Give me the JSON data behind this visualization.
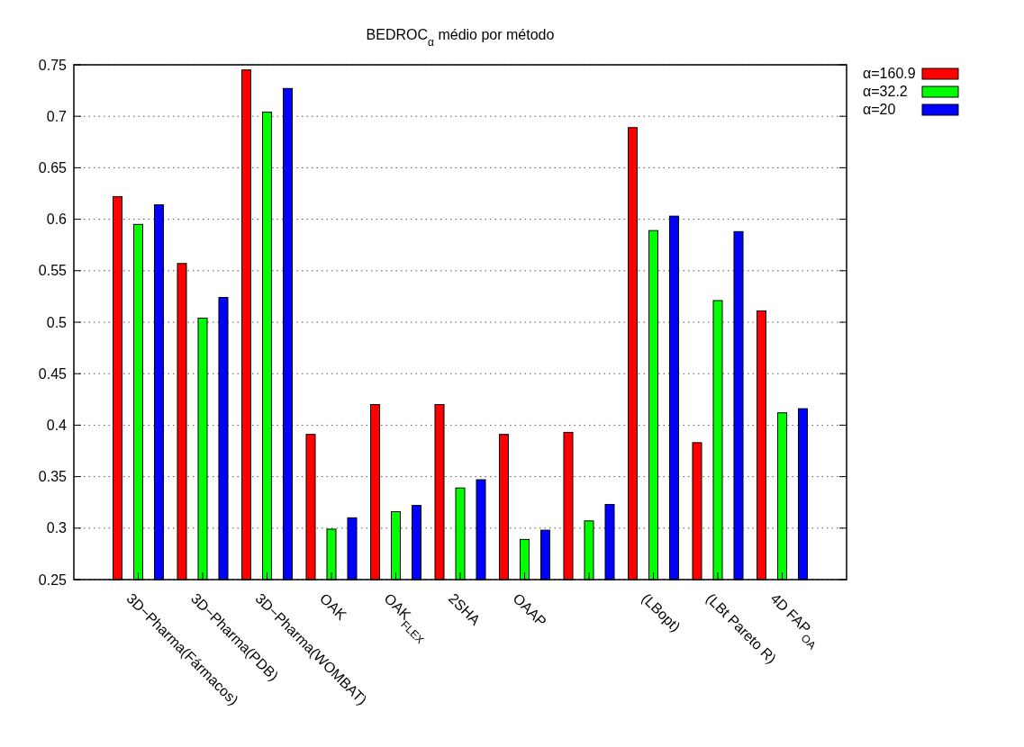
{
  "chart_data": {
    "type": "bar",
    "title": "BEDROC$_{α}$ médio por método",
    "categories": [
      "3D−Pharma(Fármacos)",
      "3D−Pharma(PDB)",
      "3D−Pharma(WOMBAT)",
      "OAK",
      "OAK$_{FLEX}$",
      "2SHA",
      "OAAP",
      null,
      "(LBopt)",
      "(LBt Pareto R)",
      "4D FAP$_{OA}$"
    ],
    "series": [
      {
        "name": "α=160.9",
        "color": "#ff0000",
        "values": [
          0.622,
          0.557,
          0.745,
          0.391,
          0.42,
          0.42,
          0.391,
          0.393,
          0.689,
          0.383,
          0.511
        ]
      },
      {
        "name": "α=32.2",
        "color": "#00ff00",
        "values": [
          0.595,
          0.504,
          0.704,
          0.299,
          0.316,
          0.339,
          0.289,
          0.307,
          0.589,
          0.521,
          0.412
        ]
      },
      {
        "name": "α=20",
        "color": "#0000ff",
        "values": [
          0.614,
          0.524,
          0.727,
          0.31,
          0.322,
          0.347,
          0.298,
          0.323,
          0.603,
          0.588,
          0.416
        ]
      }
    ],
    "ylim": [
      0.25,
      0.75
    ],
    "yticks": [
      0.25,
      0.3,
      0.35,
      0.4,
      0.45,
      0.5,
      0.55,
      0.6,
      0.65,
      0.7,
      0.75
    ],
    "grid": "y",
    "legend": "top right"
  }
}
